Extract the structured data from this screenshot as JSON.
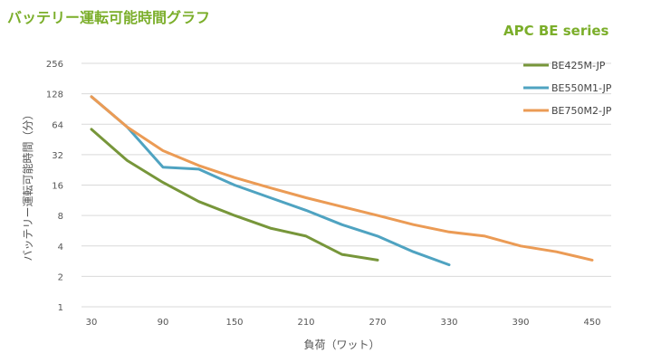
{
  "page_title": "バッテリー運転可能時間グラフ",
  "subtitle": "APC BE series",
  "chart_data": {
    "type": "line",
    "title": "バッテリー運転可能時間グラフ",
    "subtitle": "APC BE series",
    "xlabel": "負荷（ワット）",
    "ylabel": "バッテリー運転可能時間（分）",
    "yscale": "log2",
    "ylim": [
      1,
      256
    ],
    "xlim": [
      30,
      450
    ],
    "x_ticks": [
      30,
      90,
      150,
      210,
      270,
      330,
      390,
      450
    ],
    "y_ticks": [
      1,
      2,
      4,
      8,
      16,
      32,
      64,
      128,
      256
    ],
    "grid": true,
    "legend_position": "top-right",
    "series": [
      {
        "name": "BE425M-JP",
        "color": "#77963a",
        "points": [
          [
            30,
            57
          ],
          [
            60,
            28
          ],
          [
            90,
            17
          ],
          [
            120,
            11
          ],
          [
            150,
            8
          ],
          [
            180,
            6
          ],
          [
            210,
            5
          ],
          [
            240,
            3.3
          ],
          [
            270,
            2.9
          ]
        ]
      },
      {
        "name": "BE550M1-JP",
        "color": "#4fa3c1",
        "points": [
          [
            30,
            120
          ],
          [
            60,
            60
          ],
          [
            90,
            24
          ],
          [
            120,
            23
          ],
          [
            150,
            16
          ],
          [
            180,
            12
          ],
          [
            210,
            9
          ],
          [
            240,
            6.5
          ],
          [
            270,
            5
          ],
          [
            300,
            3.5
          ],
          [
            330,
            2.6
          ]
        ]
      },
      {
        "name": "BE750M2-JP",
        "color": "#eb9b55",
        "points": [
          [
            30,
            120
          ],
          [
            60,
            60
          ],
          [
            90,
            35
          ],
          [
            120,
            25
          ],
          [
            150,
            19
          ],
          [
            180,
            15
          ],
          [
            210,
            12
          ],
          [
            240,
            9.8
          ],
          [
            270,
            8
          ],
          [
            300,
            6.5
          ],
          [
            330,
            5.5
          ],
          [
            360,
            5
          ],
          [
            390,
            4
          ],
          [
            420,
            3.5
          ],
          [
            450,
            2.9
          ]
        ]
      }
    ]
  }
}
